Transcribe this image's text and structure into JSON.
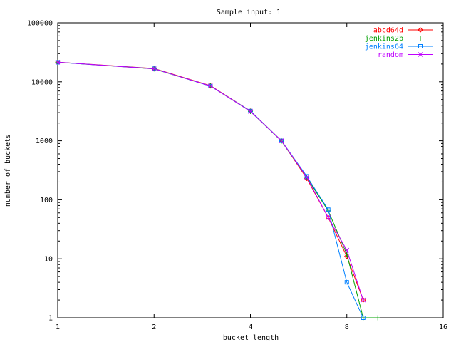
{
  "chart_data": {
    "type": "line",
    "title": "Sample input: 1",
    "xlabel": "bucket length",
    "ylabel": "number of buckets",
    "x_scale": "log2",
    "y_scale": "log10",
    "xlim": [
      1,
      16
    ],
    "ylim": [
      1,
      100000
    ],
    "x_ticks": [
      1,
      2,
      4,
      8,
      16
    ],
    "x_tick_labels": [
      "1",
      "2",
      "4",
      "8",
      "16"
    ],
    "y_ticks": [
      1,
      10,
      100,
      1000,
      10000,
      100000
    ],
    "y_tick_labels": [
      "1",
      "10",
      "100",
      "1000",
      "10000",
      "100000"
    ],
    "grid": false,
    "legend_position": "top-right",
    "series": [
      {
        "name": "abcd64d",
        "color": "#ff0000",
        "marker": "diamond",
        "points": [
          [
            1,
            21500
          ],
          [
            2,
            16800
          ],
          [
            3,
            8600
          ],
          [
            4,
            3200
          ],
          [
            5,
            1000
          ],
          [
            6,
            230
          ],
          [
            7,
            50
          ],
          [
            8,
            11
          ],
          [
            9,
            2
          ]
        ]
      },
      {
        "name": "jenkins2b",
        "color": "#00a000",
        "marker": "plus",
        "points": [
          [
            1,
            21500
          ],
          [
            2,
            16500
          ],
          [
            3,
            8500
          ],
          [
            4,
            3150
          ],
          [
            5,
            990
          ],
          [
            6,
            240
          ],
          [
            7,
            65
          ],
          [
            8,
            12
          ],
          [
            9,
            1
          ],
          [
            10,
            1
          ]
        ]
      },
      {
        "name": "jenkins64",
        "color": "#0080ff",
        "marker": "square",
        "points": [
          [
            1,
            21400
          ],
          [
            2,
            16700
          ],
          [
            3,
            8450
          ],
          [
            4,
            3200
          ],
          [
            5,
            1000
          ],
          [
            6,
            250
          ],
          [
            7,
            68
          ],
          [
            8,
            4
          ],
          [
            9,
            1
          ]
        ]
      },
      {
        "name": "random",
        "color": "#c000ff",
        "marker": "cross",
        "points": [
          [
            1,
            21500
          ],
          [
            2,
            16600
          ],
          [
            3,
            8500
          ],
          [
            4,
            3150
          ],
          [
            5,
            1000
          ],
          [
            6,
            240
          ],
          [
            7,
            50
          ],
          [
            8,
            14
          ],
          [
            9,
            2
          ]
        ]
      }
    ]
  }
}
